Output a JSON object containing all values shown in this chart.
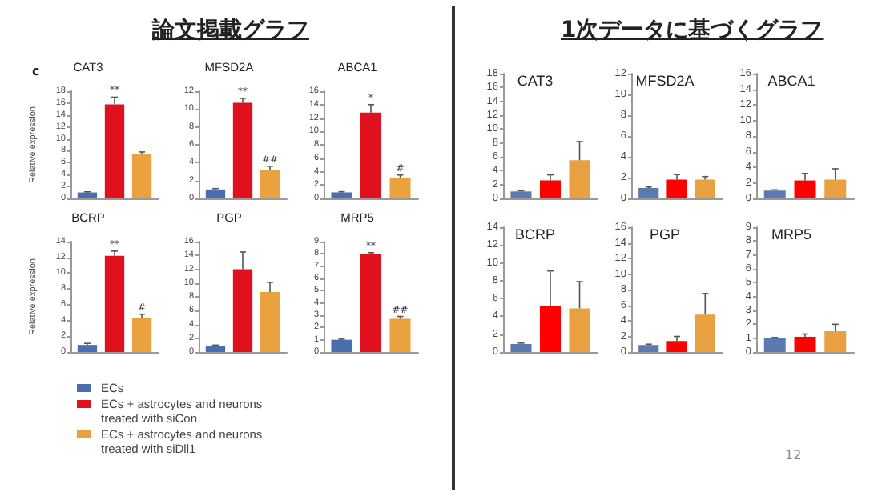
{
  "chart_data": [
    {
      "type": "bar",
      "title": "CAT3",
      "ylabel": "Relative expression",
      "annotations": [
        "論文掲載グラフ",
        "c"
      ],
      "categories": [
        null
      ],
      "ylim": [
        0,
        18
      ],
      "yticks": [
        0,
        2,
        4,
        6,
        8,
        10,
        12,
        14,
        16,
        18
      ],
      "legend": "bottom",
      "series": [
        {
          "name": "ECs",
          "color": "#4a6fb0",
          "values": [
            1.0
          ],
          "errors": [
            [
              1.0,
              1.1
            ]
          ],
          "value_labels": [
            null
          ]
        },
        {
          "name": "ECs + astrocytes and neurons treated with siCon",
          "color": "#e0101e",
          "values": [
            15.8
          ],
          "errors": [
            [
              15.8,
              17.0
            ]
          ],
          "value_labels": [
            "**"
          ]
        },
        {
          "name": "ECs + astrocytes and neurons treated with siDll1",
          "color": "#eaa23e",
          "values": [
            7.5
          ],
          "errors": [
            [
              7.5,
              7.8
            ]
          ],
          "value_labels": [
            null
          ]
        }
      ]
    },
    {
      "type": "bar",
      "title": "MFSD2A",
      "categories": [
        null
      ],
      "ylim": [
        0,
        12
      ],
      "yticks": [
        0,
        2,
        4,
        6,
        8,
        10,
        12
      ],
      "series": [
        {
          "color": "#4a6fb0",
          "values": [
            1.0
          ],
          "errors": [
            [
              1.0,
              1.1
            ]
          ],
          "value_labels": [
            null
          ]
        },
        {
          "color": "#e0101e",
          "values": [
            10.7
          ],
          "errors": [
            [
              10.7,
              11.2
            ]
          ],
          "value_labels": [
            "**"
          ]
        },
        {
          "color": "#eaa23e",
          "values": [
            3.2
          ],
          "errors": [
            [
              3.2,
              3.6
            ]
          ],
          "value_labels": [
            "##"
          ]
        }
      ]
    },
    {
      "type": "bar",
      "title": "ABCA1",
      "categories": [
        null
      ],
      "ylim": [
        0,
        16
      ],
      "yticks": [
        0,
        2,
        4,
        6,
        8,
        10,
        12,
        14,
        16
      ],
      "series": [
        {
          "color": "#4a6fb0",
          "values": [
            0.9
          ],
          "errors": [
            [
              0.9,
              1.0
            ]
          ],
          "value_labels": [
            null
          ]
        },
        {
          "color": "#e0101e",
          "values": [
            12.8
          ],
          "errors": [
            [
              12.8,
              14.0
            ]
          ],
          "value_labels": [
            "*"
          ]
        },
        {
          "color": "#eaa23e",
          "values": [
            3.1
          ],
          "errors": [
            [
              3.1,
              3.5
            ]
          ],
          "value_labels": [
            "#"
          ]
        }
      ]
    },
    {
      "type": "bar",
      "title": "BCRP",
      "ylabel": "Relative expression",
      "categories": [
        null
      ],
      "ylim": [
        0,
        14
      ],
      "yticks": [
        0,
        2,
        4,
        6,
        8,
        10,
        12,
        14
      ],
      "series": [
        {
          "color": "#4a6fb0",
          "values": [
            0.9
          ],
          "errors": [
            [
              0.9,
              1.1
            ]
          ],
          "value_labels": [
            null
          ]
        },
        {
          "color": "#e0101e",
          "values": [
            12.2
          ],
          "errors": [
            [
              12.2,
              12.8
            ]
          ],
          "value_labels": [
            "**"
          ]
        },
        {
          "color": "#eaa23e",
          "values": [
            4.3
          ],
          "errors": [
            [
              4.3,
              4.8
            ]
          ],
          "value_labels": [
            "#"
          ]
        }
      ]
    },
    {
      "type": "bar",
      "title": "PGP",
      "categories": [
        null
      ],
      "ylim": [
        0,
        16
      ],
      "yticks": [
        0,
        2,
        4,
        6,
        8,
        10,
        12,
        14,
        16
      ],
      "series": [
        {
          "color": "#4a6fb0",
          "values": [
            0.9
          ],
          "errors": [
            [
              0.9,
              1.0
            ]
          ],
          "value_labels": [
            null
          ]
        },
        {
          "color": "#e0101e",
          "values": [
            12.0
          ],
          "errors": [
            [
              12.0,
              14.5
            ]
          ],
          "value_labels": [
            null
          ]
        },
        {
          "color": "#eaa23e",
          "values": [
            8.7
          ],
          "errors": [
            [
              8.7,
              10.1
            ]
          ],
          "value_labels": [
            null
          ]
        }
      ]
    },
    {
      "type": "bar",
      "title": "MRP5",
      "categories": [
        null
      ],
      "ylim": [
        0,
        9
      ],
      "yticks": [
        0,
        1,
        2,
        3,
        4,
        5,
        6,
        7,
        8,
        9
      ],
      "series": [
        {
          "color": "#4a6fb0",
          "values": [
            1.0
          ],
          "errors": [
            [
              1.0,
              1.05
            ]
          ],
          "value_labels": [
            null
          ]
        },
        {
          "color": "#e0101e",
          "values": [
            8.0
          ],
          "errors": [
            [
              8.0,
              8.1
            ]
          ],
          "value_labels": [
            "**"
          ]
        },
        {
          "color": "#eaa23e",
          "values": [
            2.7
          ],
          "errors": [
            [
              2.7,
              2.9
            ]
          ],
          "value_labels": [
            "##"
          ]
        }
      ]
    },
    {
      "type": "bar",
      "title": "CAT3",
      "annotations": [
        "1次データに基づくグラフ"
      ],
      "categories": [
        null
      ],
      "ylim": [
        0,
        18
      ],
      "yticks": [
        0,
        2,
        4,
        6,
        8,
        10,
        12,
        14,
        16,
        18
      ],
      "series": [
        {
          "color": "#5b7bb0",
          "values": [
            1.0
          ],
          "errors": [
            [
              1.0,
              1.1
            ]
          ]
        },
        {
          "color": "#ff0000",
          "values": [
            2.6
          ],
          "errors": [
            [
              2.6,
              3.4
            ]
          ]
        },
        {
          "color": "#e9a040",
          "values": [
            5.5
          ],
          "errors": [
            [
              5.5,
              8.2
            ]
          ]
        }
      ]
    },
    {
      "type": "bar",
      "title": "MFSD2A",
      "categories": [
        null
      ],
      "ylim": [
        0,
        12
      ],
      "yticks": [
        0,
        2,
        4,
        6,
        8,
        10,
        12
      ],
      "series": [
        {
          "color": "#5b7bb0",
          "values": [
            1.0
          ],
          "errors": [
            [
              1.0,
              1.1
            ]
          ]
        },
        {
          "color": "#ff0000",
          "values": [
            1.8
          ],
          "errors": [
            [
              1.8,
              2.3
            ]
          ]
        },
        {
          "color": "#e9a040",
          "values": [
            1.8
          ],
          "errors": [
            [
              1.8,
              2.1
            ]
          ]
        }
      ]
    },
    {
      "type": "bar",
      "title": "ABCA1",
      "categories": [
        null
      ],
      "ylim": [
        0,
        16
      ],
      "yticks": [
        0,
        2,
        4,
        6,
        8,
        10,
        12,
        14,
        16
      ],
      "series": [
        {
          "color": "#5b7bb0",
          "values": [
            1.0
          ],
          "errors": [
            [
              1.0,
              1.1
            ]
          ]
        },
        {
          "color": "#ff0000",
          "values": [
            2.3
          ],
          "errors": [
            [
              2.3,
              3.2
            ]
          ]
        },
        {
          "color": "#e9a040",
          "values": [
            2.4
          ],
          "errors": [
            [
              2.4,
              3.8
            ]
          ]
        }
      ]
    },
    {
      "type": "bar",
      "title": "BCRP",
      "categories": [
        null
      ],
      "ylim": [
        0,
        14
      ],
      "yticks": [
        0,
        2,
        4,
        6,
        8,
        10,
        12,
        14
      ],
      "series": [
        {
          "color": "#5b7bb0",
          "values": [
            0.9
          ],
          "errors": [
            [
              0.9,
              1.0
            ]
          ]
        },
        {
          "color": "#ff0000",
          "values": [
            5.2
          ],
          "errors": [
            [
              5.2,
              9.1
            ]
          ]
        },
        {
          "color": "#e9a040",
          "values": [
            4.9
          ],
          "errors": [
            [
              4.9,
              7.9
            ]
          ]
        }
      ]
    },
    {
      "type": "bar",
      "title": "PGP",
      "categories": [
        null
      ],
      "ylim": [
        0,
        16
      ],
      "yticks": [
        0,
        2,
        4,
        6,
        8,
        10,
        12,
        14,
        16
      ],
      "series": [
        {
          "color": "#5b7bb0",
          "values": [
            0.9
          ],
          "errors": [
            [
              0.9,
              1.0
            ]
          ]
        },
        {
          "color": "#ff0000",
          "values": [
            1.4
          ],
          "errors": [
            [
              1.4,
              2.0
            ]
          ]
        },
        {
          "color": "#e9a040",
          "values": [
            4.8
          ],
          "errors": [
            [
              4.8,
              7.5
            ]
          ]
        }
      ]
    },
    {
      "type": "bar",
      "title": "MRP5",
      "annotations": [
        "12"
      ],
      "categories": [
        null
      ],
      "ylim": [
        0,
        9
      ],
      "yticks": [
        0,
        1,
        2,
        3,
        4,
        5,
        6,
        7,
        8,
        9
      ],
      "series": [
        {
          "color": "#5b7bb0",
          "values": [
            1.0
          ],
          "errors": [
            [
              1.0,
              1.05
            ]
          ]
        },
        {
          "color": "#ff0000",
          "values": [
            1.1
          ],
          "errors": [
            [
              1.1,
              1.3
            ]
          ]
        },
        {
          "color": "#e9a040",
          "values": [
            1.5
          ],
          "errors": [
            [
              1.5,
              2.0
            ]
          ]
        }
      ]
    }
  ]
}
